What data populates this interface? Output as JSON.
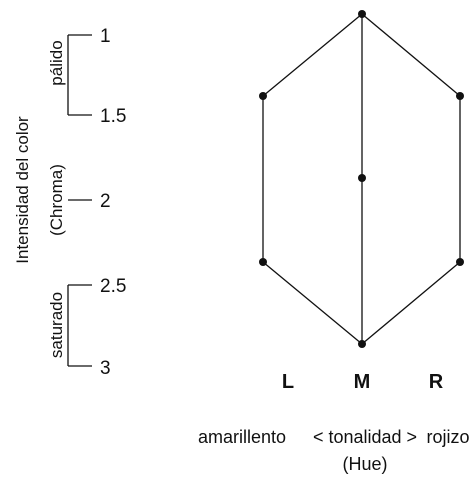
{
  "scale": {
    "title": "Intensidad del color",
    "subtitle": "(Chroma)",
    "ticks": [
      "1",
      "1.5",
      "2",
      "2.5",
      "3"
    ],
    "top_label": "pálido",
    "bottom_label": "saturado"
  },
  "diagram": {
    "columns": [
      "L",
      "M",
      "R"
    ],
    "hue_left": "amarillento",
    "hue_center": "< tonalidad >",
    "hue_right": "rojizo",
    "hue_sub": "(Hue)"
  }
}
